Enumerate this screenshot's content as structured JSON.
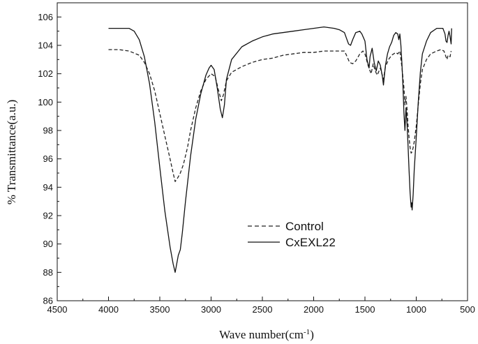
{
  "chart_data": {
    "type": "line",
    "xlabel": "Wave number(cm",
    "xlabel_unit_sup": "-1",
    "xlabel_close": ")",
    "ylabel": "% Transmittance(a.u.)",
    "xlim": [
      4500,
      500
    ],
    "ylim": [
      86,
      107
    ],
    "x_ticks": [
      4500,
      4000,
      3500,
      3000,
      2500,
      2000,
      1500,
      1000,
      500
    ],
    "y_ticks": [
      86,
      88,
      90,
      92,
      94,
      96,
      98,
      100,
      102,
      104,
      106
    ],
    "grid": false,
    "legend_position": "center-left",
    "series": [
      {
        "name": "Control",
        "style": "dashed",
        "color": "#222222",
        "points": [
          [
            4000,
            103.7
          ],
          [
            3900,
            103.7
          ],
          [
            3800,
            103.6
          ],
          [
            3700,
            103.3
          ],
          [
            3650,
            102.8
          ],
          [
            3600,
            102.0
          ],
          [
            3550,
            100.8
          ],
          [
            3500,
            99.2
          ],
          [
            3450,
            97.6
          ],
          [
            3400,
            96.0
          ],
          [
            3370,
            95.0
          ],
          [
            3350,
            94.4
          ],
          [
            3330,
            94.6
          ],
          [
            3300,
            95.0
          ],
          [
            3270,
            95.6
          ],
          [
            3230,
            96.8
          ],
          [
            3200,
            98.0
          ],
          [
            3150,
            99.6
          ],
          [
            3100,
            100.8
          ],
          [
            3050,
            101.6
          ],
          [
            3000,
            102.0
          ],
          [
            2960,
            101.8
          ],
          [
            2930,
            100.9
          ],
          [
            2900,
            100.1
          ],
          [
            2880,
            100.5
          ],
          [
            2850,
            101.5
          ],
          [
            2800,
            102.1
          ],
          [
            2700,
            102.5
          ],
          [
            2600,
            102.8
          ],
          [
            2500,
            103.0
          ],
          [
            2400,
            103.1
          ],
          [
            2300,
            103.3
          ],
          [
            2200,
            103.4
          ],
          [
            2100,
            103.5
          ],
          [
            2000,
            103.5
          ],
          [
            1900,
            103.6
          ],
          [
            1800,
            103.6
          ],
          [
            1700,
            103.6
          ],
          [
            1680,
            103.3
          ],
          [
            1650,
            102.8
          ],
          [
            1620,
            102.7
          ],
          [
            1590,
            102.9
          ],
          [
            1550,
            103.4
          ],
          [
            1520,
            103.6
          ],
          [
            1500,
            103.4
          ],
          [
            1470,
            102.6
          ],
          [
            1440,
            102.0
          ],
          [
            1420,
            102.7
          ],
          [
            1400,
            102.2
          ],
          [
            1380,
            101.9
          ],
          [
            1350,
            102.4
          ],
          [
            1320,
            101.6
          ],
          [
            1300,
            102.5
          ],
          [
            1270,
            103.0
          ],
          [
            1240,
            103.3
          ],
          [
            1200,
            103.5
          ],
          [
            1180,
            103.4
          ],
          [
            1160,
            103.6
          ],
          [
            1140,
            102.5
          ],
          [
            1120,
            101.0
          ],
          [
            1110,
            99.8
          ],
          [
            1100,
            100.4
          ],
          [
            1090,
            99.5
          ],
          [
            1080,
            98.4
          ],
          [
            1070,
            97.5
          ],
          [
            1060,
            96.8
          ],
          [
            1050,
            96.4
          ],
          [
            1040,
            96.5
          ],
          [
            1030,
            96.8
          ],
          [
            1020,
            97.2
          ],
          [
            1000,
            98.3
          ],
          [
            980,
            99.8
          ],
          [
            960,
            101.3
          ],
          [
            940,
            102.3
          ],
          [
            900,
            103.0
          ],
          [
            860,
            103.4
          ],
          [
            800,
            103.6
          ],
          [
            760,
            103.7
          ],
          [
            730,
            103.6
          ],
          [
            710,
            103.2
          ],
          [
            700,
            103.0
          ],
          [
            690,
            103.3
          ],
          [
            670,
            103.2
          ],
          [
            660,
            103.6
          ]
        ]
      },
      {
        "name": "CxEXL22",
        "style": "solid",
        "color": "#111111",
        "points": [
          [
            4000,
            105.2
          ],
          [
            3900,
            105.2
          ],
          [
            3800,
            105.2
          ],
          [
            3750,
            105.0
          ],
          [
            3700,
            104.4
          ],
          [
            3650,
            103.2
          ],
          [
            3600,
            101.3
          ],
          [
            3550,
            98.6
          ],
          [
            3500,
            95.4
          ],
          [
            3450,
            92.3
          ],
          [
            3400,
            89.8
          ],
          [
            3370,
            88.6
          ],
          [
            3350,
            88.0
          ],
          [
            3340,
            88.4
          ],
          [
            3320,
            89.2
          ],
          [
            3300,
            89.6
          ],
          [
            3280,
            90.8
          ],
          [
            3250,
            93.0
          ],
          [
            3200,
            96.2
          ],
          [
            3150,
            98.8
          ],
          [
            3100,
            100.6
          ],
          [
            3050,
            101.9
          ],
          [
            3020,
            102.4
          ],
          [
            3000,
            102.6
          ],
          [
            2970,
            102.3
          ],
          [
            2940,
            101.0
          ],
          [
            2910,
            99.5
          ],
          [
            2890,
            98.9
          ],
          [
            2870,
            99.8
          ],
          [
            2850,
            101.6
          ],
          [
            2800,
            103.0
          ],
          [
            2700,
            103.9
          ],
          [
            2600,
            104.3
          ],
          [
            2500,
            104.6
          ],
          [
            2400,
            104.8
          ],
          [
            2300,
            104.9
          ],
          [
            2200,
            105.0
          ],
          [
            2100,
            105.1
          ],
          [
            2000,
            105.2
          ],
          [
            1900,
            105.3
          ],
          [
            1800,
            105.2
          ],
          [
            1750,
            105.1
          ],
          [
            1700,
            104.9
          ],
          [
            1680,
            104.5
          ],
          [
            1660,
            104.1
          ],
          [
            1640,
            104.0
          ],
          [
            1620,
            104.4
          ],
          [
            1590,
            104.9
          ],
          [
            1550,
            105.0
          ],
          [
            1530,
            104.8
          ],
          [
            1500,
            104.3
          ],
          [
            1480,
            103.0
          ],
          [
            1460,
            102.4
          ],
          [
            1450,
            103.2
          ],
          [
            1430,
            103.8
          ],
          [
            1410,
            102.8
          ],
          [
            1390,
            102.2
          ],
          [
            1370,
            102.9
          ],
          [
            1350,
            102.6
          ],
          [
            1330,
            101.8
          ],
          [
            1320,
            101.2
          ],
          [
            1300,
            102.6
          ],
          [
            1280,
            103.4
          ],
          [
            1260,
            103.9
          ],
          [
            1240,
            104.2
          ],
          [
            1220,
            104.7
          ],
          [
            1200,
            104.9
          ],
          [
            1180,
            104.8
          ],
          [
            1170,
            104.4
          ],
          [
            1160,
            104.8
          ],
          [
            1150,
            104.0
          ],
          [
            1140,
            102.8
          ],
          [
            1130,
            101.2
          ],
          [
            1120,
            99.2
          ],
          [
            1110,
            98.0
          ],
          [
            1100,
            99.6
          ],
          [
            1090,
            98.5
          ],
          [
            1080,
            97.0
          ],
          [
            1070,
            95.2
          ],
          [
            1060,
            93.6
          ],
          [
            1050,
            92.6
          ],
          [
            1045,
            92.9
          ],
          [
            1040,
            92.4
          ],
          [
            1030,
            93.5
          ],
          [
            1020,
            95.2
          ],
          [
            1000,
            97.5
          ],
          [
            980,
            100.0
          ],
          [
            960,
            102.1
          ],
          [
            940,
            103.4
          ],
          [
            900,
            104.3
          ],
          [
            860,
            104.9
          ],
          [
            800,
            105.2
          ],
          [
            740,
            105.2
          ],
          [
            720,
            104.8
          ],
          [
            710,
            104.3
          ],
          [
            700,
            104.2
          ],
          [
            690,
            104.7
          ],
          [
            680,
            105.0
          ],
          [
            670,
            104.6
          ],
          [
            660,
            104.1
          ],
          [
            655,
            105.2
          ]
        ]
      }
    ]
  }
}
